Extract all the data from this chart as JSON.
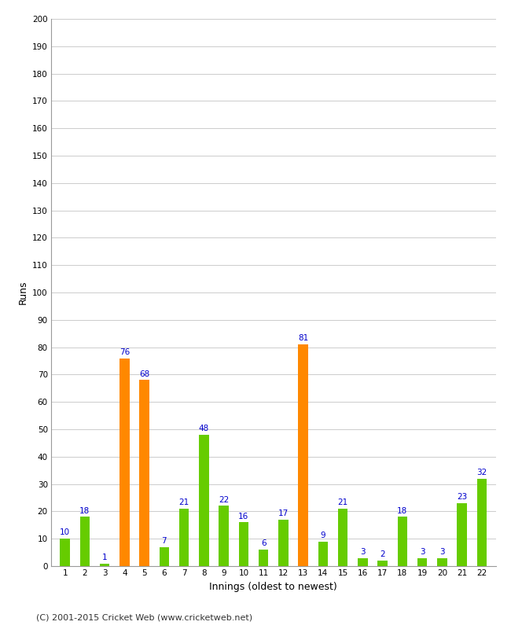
{
  "innings": [
    1,
    2,
    3,
    4,
    5,
    6,
    7,
    8,
    9,
    10,
    11,
    12,
    13,
    14,
    15,
    16,
    17,
    18,
    19,
    20,
    21,
    22
  ],
  "values": [
    10,
    18,
    1,
    76,
    68,
    7,
    21,
    48,
    22,
    16,
    6,
    17,
    81,
    9,
    21,
    3,
    2,
    18,
    3,
    3,
    23,
    32
  ],
  "colors": [
    "#66cc00",
    "#66cc00",
    "#66cc00",
    "#ff8800",
    "#ff8800",
    "#66cc00",
    "#66cc00",
    "#66cc00",
    "#66cc00",
    "#66cc00",
    "#66cc00",
    "#66cc00",
    "#ff8800",
    "#66cc00",
    "#66cc00",
    "#66cc00",
    "#66cc00",
    "#66cc00",
    "#66cc00",
    "#66cc00",
    "#66cc00",
    "#66cc00"
  ],
  "xlabel": "Innings (oldest to newest)",
  "ylabel": "Runs",
  "ylim": [
    0,
    200
  ],
  "yticks": [
    0,
    10,
    20,
    30,
    40,
    50,
    60,
    70,
    80,
    90,
    100,
    110,
    120,
    130,
    140,
    150,
    160,
    170,
    180,
    190,
    200
  ],
  "label_color": "#0000cc",
  "background_color": "#ffffff",
  "grid_color": "#cccccc",
  "footer": "(C) 2001-2015 Cricket Web (www.cricketweb.net)"
}
